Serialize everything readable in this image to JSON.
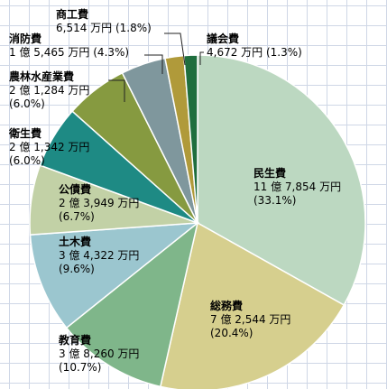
{
  "chart_data": {
    "type": "pie",
    "title": "",
    "start_angle_deg": 0,
    "direction": "clockwise",
    "slices": [
      {
        "name": "民生費",
        "amount": "11 億 7,854 万円",
        "percent_label": "(33.1%)",
        "value": 33.1,
        "color": "#bcd8c1"
      },
      {
        "name": "総務費",
        "amount": "7 億 2,544 万円",
        "percent_label": "(20.4%)",
        "value": 20.4,
        "color": "#d6cf8e"
      },
      {
        "name": "教育費",
        "amount": "3 億 8,260 万円",
        "percent_label": "(10.7%)",
        "value": 10.7,
        "color": "#7fb68a"
      },
      {
        "name": "土木費",
        "amount": "3 億 4,322 万円",
        "percent_label": "(9.6%)",
        "value": 9.6,
        "color": "#9bc6cf"
      },
      {
        "name": "公債費",
        "amount": "2 億 3,949 万円",
        "percent_label": "(6.7%)",
        "value": 6.7,
        "color": "#c2d1a6"
      },
      {
        "name": "衛生費",
        "amount": "2 億 1,342 万円",
        "percent_label": "(6.0%)",
        "value": 6.0,
        "color": "#1e8a84"
      },
      {
        "name": "農林水産業費",
        "amount": "2 億 1,284 万円",
        "percent_label": "(6.0%)",
        "value": 6.0,
        "color": "#869a40"
      },
      {
        "name": "消防費",
        "amount": "1 億 5,465 万円",
        "percent_label": "(4.3%)",
        "value": 4.3,
        "color": "#7f979d"
      },
      {
        "name": "商工費",
        "amount": "6,514 万円",
        "percent_label": "(1.8%)",
        "value": 1.8,
        "color": "#b09a3a"
      },
      {
        "name": "議会費",
        "amount": "4,672 万円",
        "percent_label": "(1.3%)",
        "value": 1.3,
        "color": "#1f6e3e"
      }
    ]
  }
}
